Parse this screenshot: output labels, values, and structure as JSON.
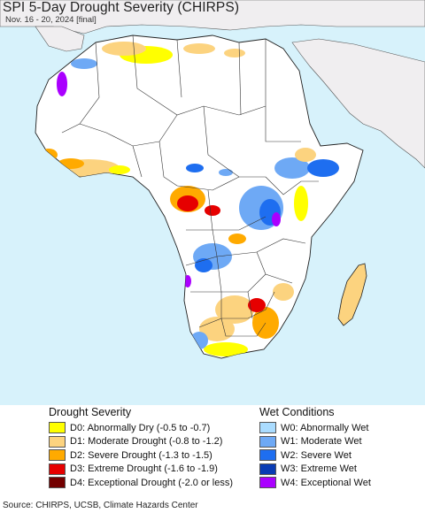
{
  "header": {
    "title": "SPI 5-Day Drought Severity (CHIRPS)",
    "subtitle": "Nov. 16 - 20, 2024 [final]"
  },
  "map": {
    "region": "Africa",
    "colors": {
      "ocean": "#d7f2fb",
      "africa_land": "#ffffff",
      "other_land": "#f0eef0",
      "border": "#333333"
    }
  },
  "legend": {
    "drought": {
      "title": "Drought Severity",
      "items": [
        {
          "label": "D0: Abnormally Dry (-0.5 to -0.7)",
          "color": "#ffff00"
        },
        {
          "label": "D1: Moderate Drought (-0.8 to -1.2)",
          "color": "#fcd37f"
        },
        {
          "label": "D2: Severe Drought (-1.3 to -1.5)",
          "color": "#ffaa00"
        },
        {
          "label": "D3: Extreme Drought (-1.6 to -1.9)",
          "color": "#e60000"
        },
        {
          "label": "D4: Exceptional Drought (-2.0 or less)",
          "color": "#730000"
        }
      ]
    },
    "wet": {
      "title": "Wet Conditions",
      "items": [
        {
          "label": "W0: Abnormally Wet",
          "color": "#aadcff"
        },
        {
          "label": "W1: Moderate Wet",
          "color": "#6ea9f5"
        },
        {
          "label": "W2: Severe Wet",
          "color": "#1e6ef0"
        },
        {
          "label": "W3: Extreme Wet",
          "color": "#0a3cb4"
        },
        {
          "label": "W4: Exceptional Wet",
          "color": "#aa00ff"
        }
      ]
    }
  },
  "footer": {
    "source": "Source: CHIRPS, UCSB, Climate Hazards Center"
  }
}
